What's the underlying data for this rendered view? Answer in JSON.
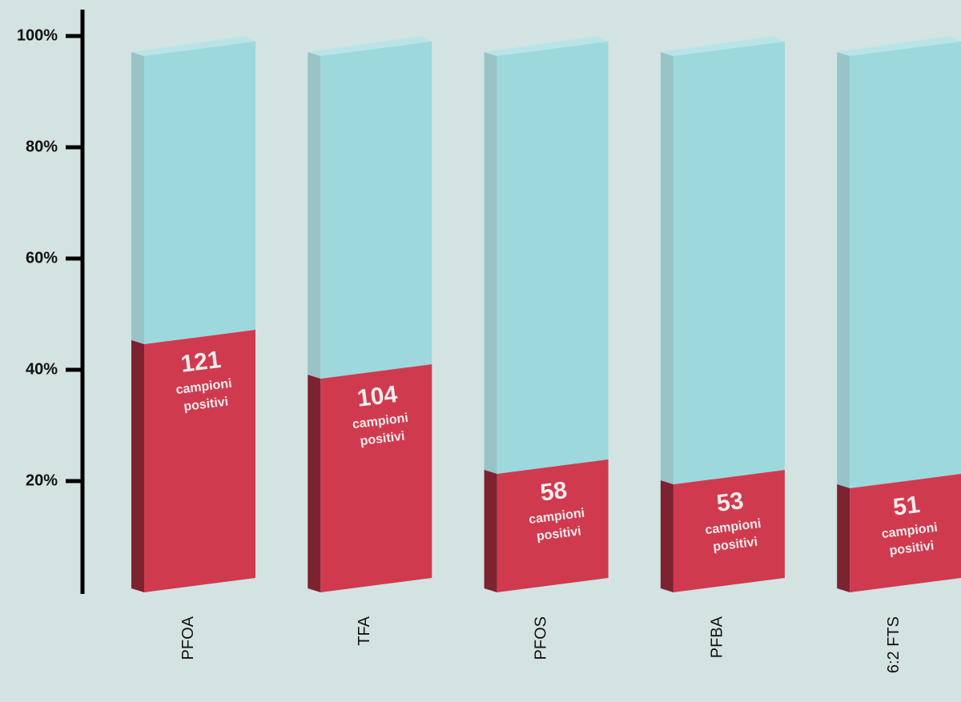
{
  "chart_data": {
    "type": "bar3d",
    "categories": [
      "PFOA",
      "TFA",
      "PFOS",
      "PFBA",
      "6:2 FTS"
    ],
    "series": [
      {
        "color": "#d03a4f",
        "values": [
          44.6,
          38.4,
          21.3,
          19.4,
          18.7
        ]
      }
    ],
    "counts": [
      121,
      104,
      58,
      53,
      51
    ],
    "count_text": [
      "campioni",
      "positivi"
    ],
    "background_color": "#9dd8dd",
    "ylim": [
      0,
      100
    ],
    "yticks": [
      {
        "value": 20,
        "label": "20%"
      },
      {
        "value": 40,
        "label": "40%"
      },
      {
        "value": 60,
        "label": "60%"
      },
      {
        "value": 80,
        "label": "80%"
      },
      {
        "value": 100,
        "label": "100%"
      }
    ],
    "grid": false
  }
}
